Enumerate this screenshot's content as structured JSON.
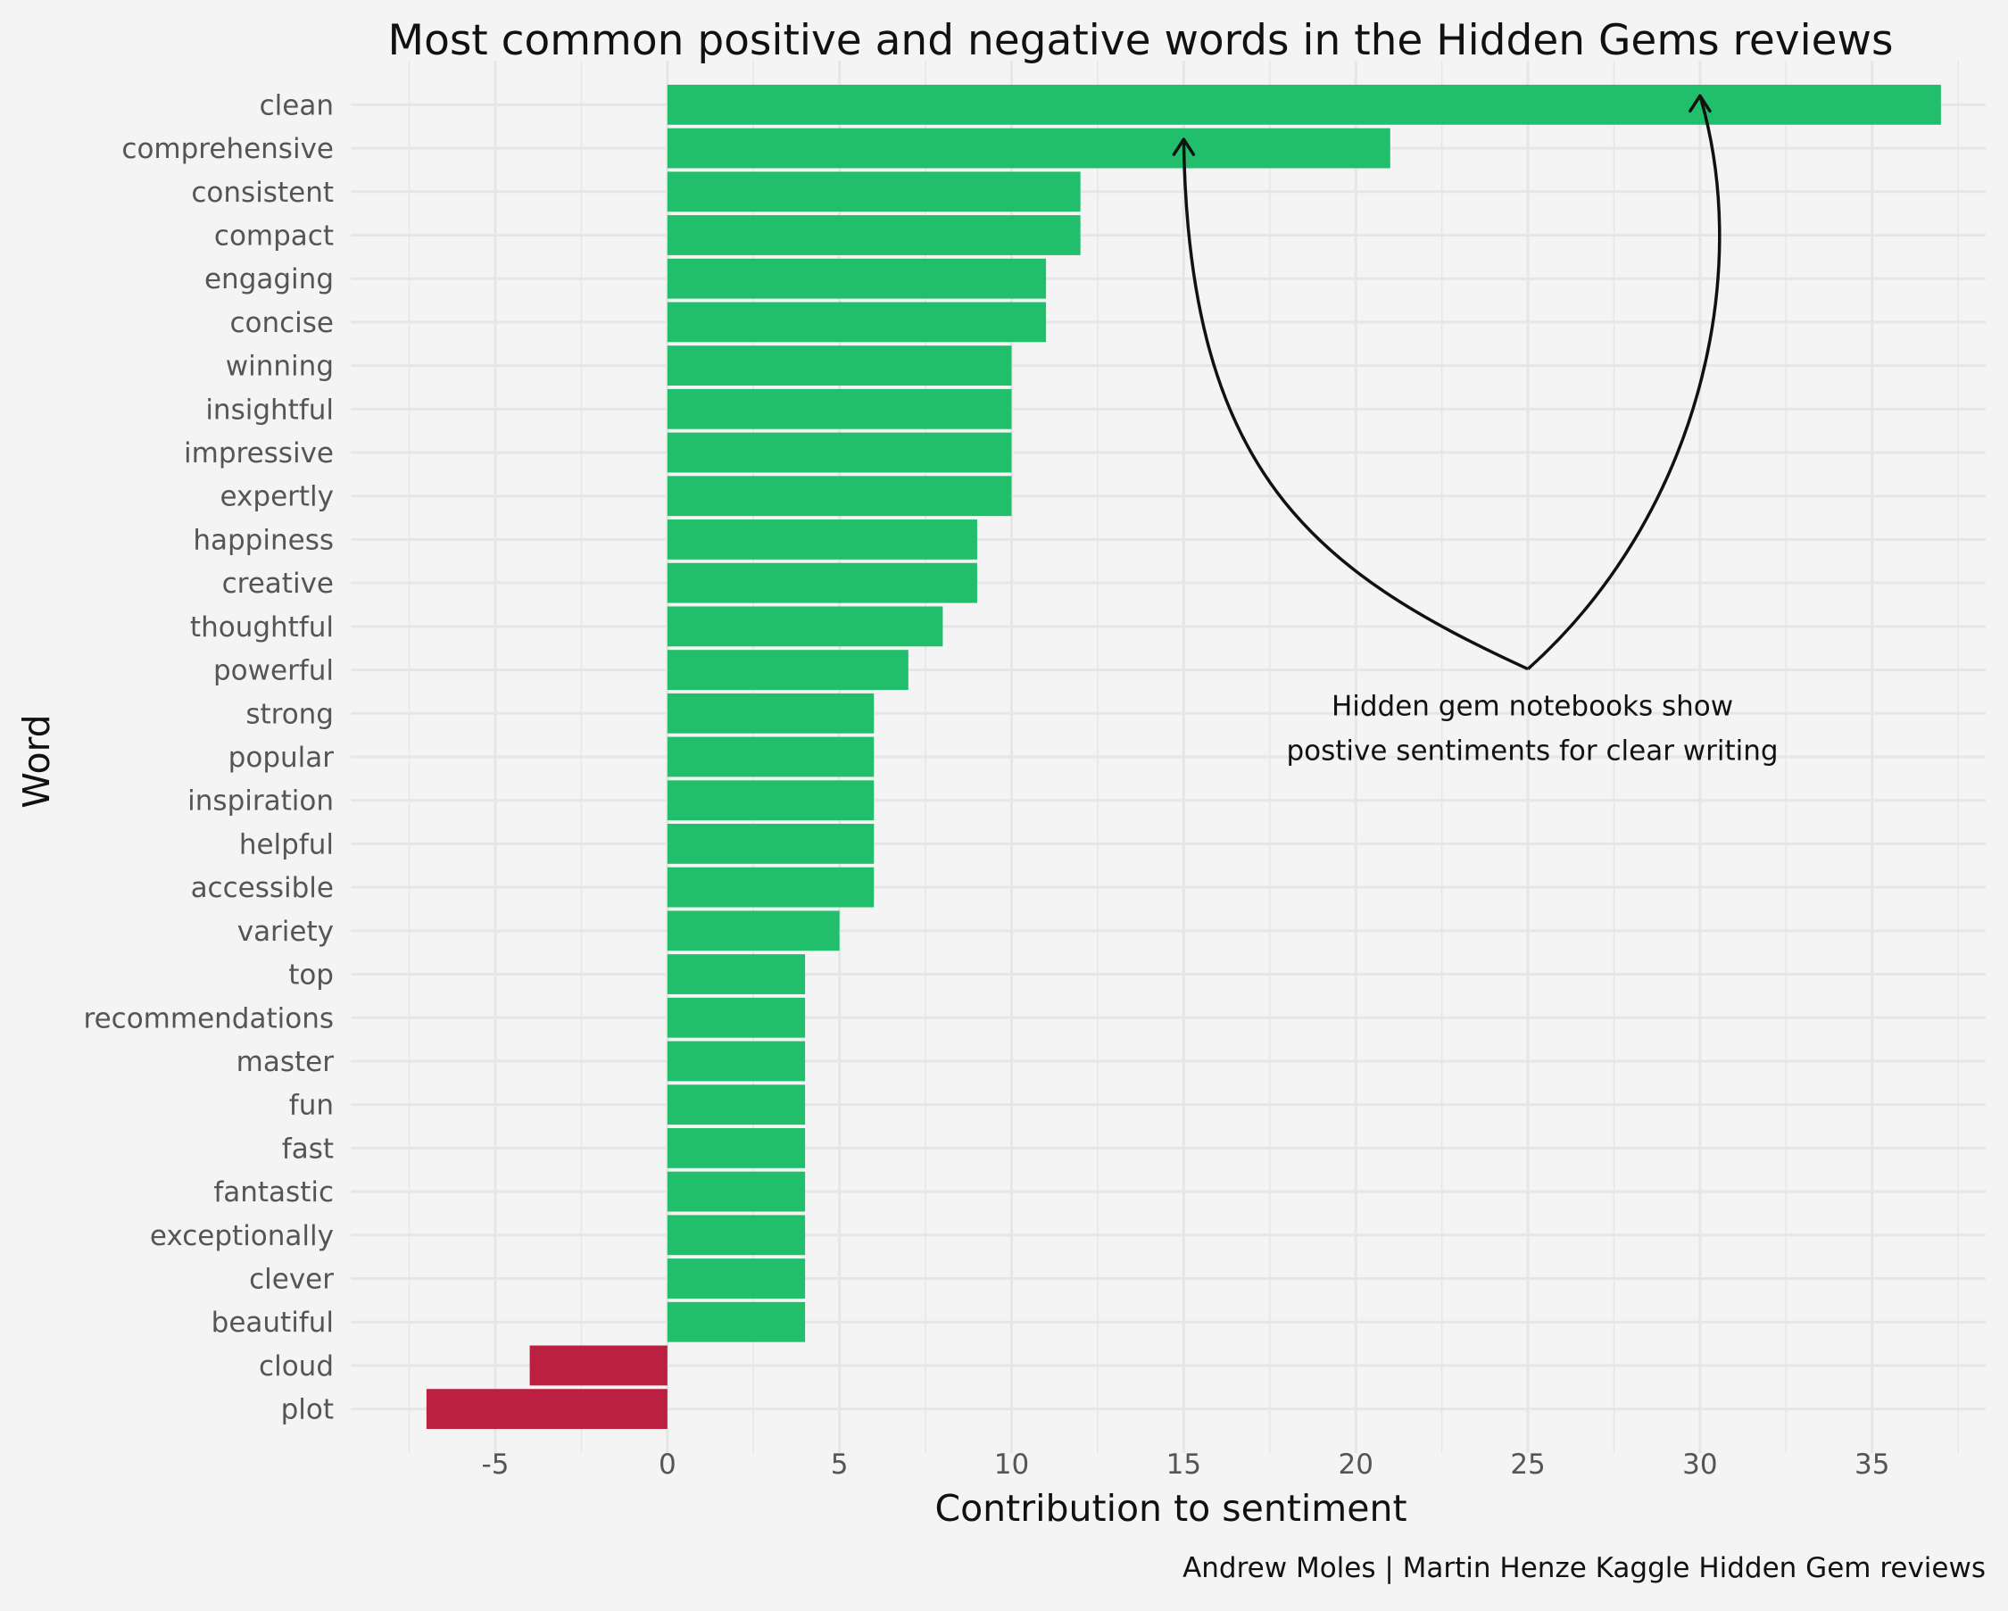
{
  "chart_data": {
    "type": "bar",
    "orientation": "horizontal",
    "title": "Most common positive and negative words in the Hidden Gems reviews",
    "xlabel": "Contribution to sentiment",
    "ylabel": "Word",
    "caption": "Andrew Moles | Martin Henze Kaggle Hidden Gem reviews",
    "xlim": [
      -9.2,
      38.3
    ],
    "x_ticks": [
      -5,
      0,
      5,
      10,
      15,
      20,
      25,
      30,
      35
    ],
    "x_tick_labels": [
      "-5",
      "0",
      "5",
      "10",
      "15",
      "20",
      "25",
      "30",
      "35"
    ],
    "grid": true,
    "legend": "none",
    "colors": {
      "positive": "#21bf6b",
      "negative": "#bc2040",
      "background": "#f4f4f4",
      "grid": "#e6e6e6"
    },
    "categories": [
      "clean",
      "comprehensive",
      "consistent",
      "compact",
      "engaging",
      "concise",
      "winning",
      "insightful",
      "impressive",
      "expertly",
      "happiness",
      "creative",
      "thoughtful",
      "powerful",
      "strong",
      "popular",
      "inspiration",
      "helpful",
      "accessible",
      "variety",
      "top",
      "recommendations",
      "master",
      "fun",
      "fast",
      "fantastic",
      "exceptionally",
      "clever",
      "beautiful",
      "cloud",
      "plot"
    ],
    "values": [
      37,
      21,
      12,
      12,
      11,
      11,
      10,
      10,
      10,
      10,
      9,
      9,
      8,
      7,
      6,
      6,
      6,
      6,
      6,
      5,
      4,
      4,
      4,
      4,
      4,
      4,
      4,
      4,
      4,
      -4,
      -7
    ],
    "annotation": {
      "lines": [
        "Hidden gem notebooks show",
        "postive sentiments for clear writing"
      ],
      "anchor": {
        "x": 25,
        "word": "powerful"
      },
      "arrow_targets": [
        {
          "x": 15,
          "word": "comprehensive"
        },
        {
          "x": 30,
          "word": "clean"
        }
      ]
    }
  }
}
